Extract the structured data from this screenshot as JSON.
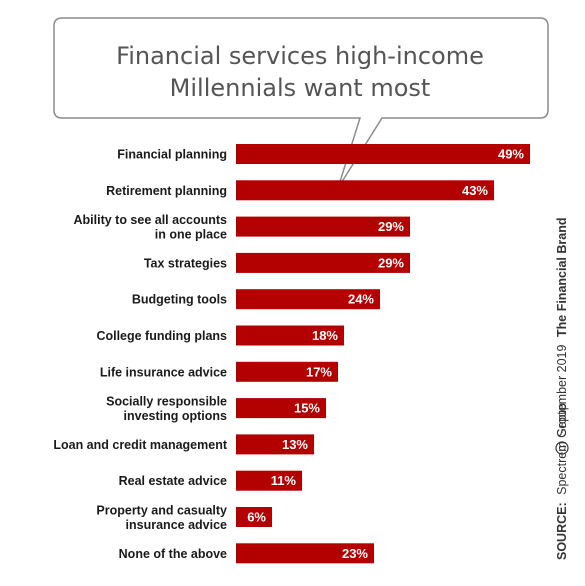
{
  "title_lines": [
    "Financial services high-income",
    "Millennials want most"
  ],
  "colors": {
    "bar": "#b30000",
    "bar_stroke": "#8a0000",
    "text": "#1a1a1a",
    "bubble_stroke": "#888888"
  },
  "source": {
    "label": "SOURCE:",
    "org": "Spectrem Group",
    "copyright_icon": "copyright-icon",
    "date": "September 2019",
    "brand": "The Financial Brand"
  },
  "chart_data": {
    "type": "bar",
    "orientation": "horizontal",
    "title": "Financial services high-income Millennials want most",
    "categories": [
      [
        "Financial planning"
      ],
      [
        "Retirement planning"
      ],
      [
        "Ability to see all accounts",
        "in one place"
      ],
      [
        "Tax strategies"
      ],
      [
        "Budgeting tools"
      ],
      [
        "College funding plans"
      ],
      [
        "Life insurance advice"
      ],
      [
        "Socially responsible",
        "investing options"
      ],
      [
        "Loan and credit management"
      ],
      [
        "Real estate advice"
      ],
      [
        "Property and casualty",
        "insurance advice"
      ],
      [
        "None of the above"
      ]
    ],
    "values": [
      49,
      43,
      29,
      29,
      24,
      18,
      17,
      15,
      13,
      11,
      6,
      23
    ],
    "value_labels": [
      "49%",
      "43%",
      "29%",
      "29%",
      "24%",
      "18%",
      "17%",
      "15%",
      "13%",
      "11%",
      "6%",
      "23%"
    ],
    "xlim": [
      0,
      49
    ],
    "grid": false,
    "legend": "none"
  }
}
